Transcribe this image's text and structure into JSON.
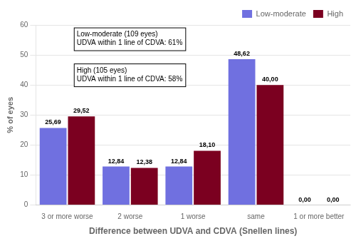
{
  "chart_data": {
    "type": "bar",
    "categories": [
      "3 or more worse",
      "2 worse",
      "1 worse",
      "same",
      "1 or more better"
    ],
    "series": [
      {
        "name": "Low-moderate",
        "color": "#7070E0",
        "values": [
          25.69,
          12.84,
          12.84,
          48.62,
          0.0
        ],
        "value_labels": [
          "25,69",
          "12,84",
          "12,84",
          "48,62",
          "0,00"
        ]
      },
      {
        "name": "High",
        "color": "#7B0020",
        "values": [
          29.52,
          12.38,
          18.1,
          40.0,
          0.0
        ],
        "value_labels": [
          "29,52",
          "12,38",
          "18,10",
          "40,00",
          "0,00"
        ]
      }
    ],
    "xlabel": "Difference between UDVA and CDVA (Snellen lines)",
    "ylabel": "% of eyes",
    "ylim": [
      0,
      60
    ],
    "yticks": [
      0,
      10,
      20,
      30,
      40,
      50,
      60
    ],
    "grid": true,
    "legend": "upper right",
    "data_labels": true,
    "annotations": [
      [
        "Low-moderate (109 eyes)",
        "UDVA within 1 line of CDVA: 61%"
      ],
      [
        "High (105 eyes)",
        "UDVA within 1 line of CDVA: 58%"
      ]
    ]
  }
}
